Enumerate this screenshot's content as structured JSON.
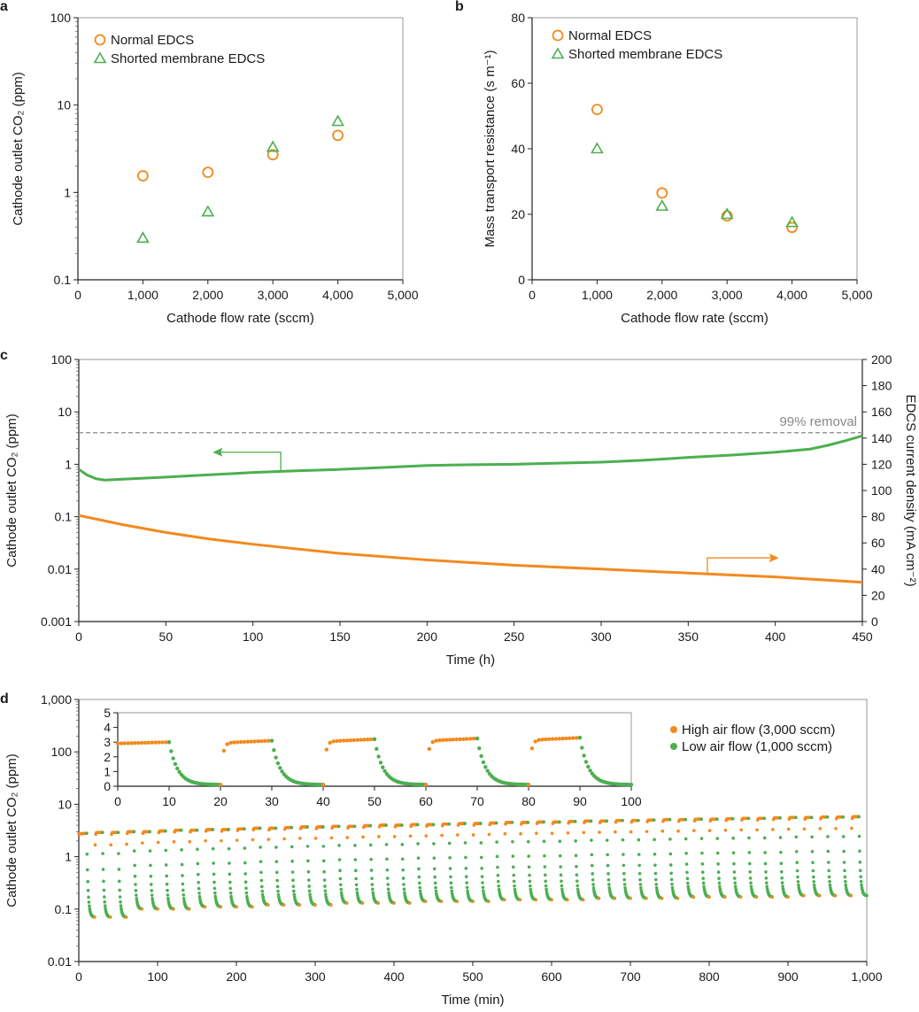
{
  "chart_data": [
    {
      "panel": "a",
      "type": "scatter",
      "xlabel": "Cathode flow rate (sccm)",
      "ylabel": "Cathode outlet CO₂ (ppm)",
      "xlim": [
        0,
        5000
      ],
      "ylim": [
        0.1,
        100
      ],
      "yscale": "log",
      "xticks": [
        "0",
        "1,000",
        "2,000",
        "3,000",
        "4,000",
        "5,000"
      ],
      "yticks": [
        "0.1",
        "1",
        "10",
        "100"
      ],
      "legend_position": "top-left",
      "series": [
        {
          "name": "Normal EDCS",
          "marker": "circle-open",
          "color": "#f28a1e",
          "x": [
            1000,
            2000,
            3000,
            4000
          ],
          "y": [
            1.55,
            1.7,
            2.7,
            4.5
          ]
        },
        {
          "name": "Shorted membrane EDCS",
          "marker": "triangle-open",
          "color": "#4caf50",
          "x": [
            1000,
            2000,
            3000,
            4000
          ],
          "y": [
            0.3,
            0.6,
            3.3,
            6.5
          ]
        }
      ]
    },
    {
      "panel": "b",
      "type": "scatter",
      "xlabel": "Cathode flow rate (sccm)",
      "ylabel": "Mass transport resistance (s m⁻¹)",
      "xlim": [
        0,
        5000
      ],
      "ylim": [
        0,
        80
      ],
      "yscale": "linear",
      "xticks": [
        "0",
        "1,000",
        "2,000",
        "3,000",
        "4,000",
        "5,000"
      ],
      "yticks": [
        "0",
        "20",
        "40",
        "60",
        "80"
      ],
      "legend_position": "top-left",
      "series": [
        {
          "name": "Normal EDCS",
          "marker": "circle-open",
          "color": "#f28a1e",
          "x": [
            1000,
            2000,
            3000,
            4000
          ],
          "y": [
            52,
            26.5,
            19.5,
            16
          ]
        },
        {
          "name": "Shorted membrane EDCS",
          "marker": "triangle-open",
          "color": "#4caf50",
          "x": [
            1000,
            2000,
            3000,
            4000
          ],
          "y": [
            40,
            22.5,
            20,
            17.5
          ]
        }
      ]
    },
    {
      "panel": "c",
      "type": "line",
      "xlabel": "Time (h)",
      "ylabel": "Cathode outlet CO₂ (ppm)",
      "ylabel_right": "EDCS current density (mA cm⁻²)",
      "xlim": [
        0,
        450
      ],
      "ylim": [
        0.001,
        100
      ],
      "yscale": "log",
      "ylim_right": [
        0,
        200
      ],
      "xticks": [
        "0",
        "50",
        "100",
        "150",
        "200",
        "250",
        "300",
        "350",
        "400",
        "450"
      ],
      "yticks": [
        "0.001",
        "0.01",
        "0.1",
        "1",
        "10",
        "100"
      ],
      "yticks_right": [
        "0",
        "20",
        "40",
        "60",
        "80",
        "100",
        "120",
        "140",
        "160",
        "180",
        "200"
      ],
      "reference_line": {
        "y": 4,
        "label": "99% removal",
        "color": "#888888",
        "style": "dashed"
      },
      "series": [
        {
          "axis": "left",
          "color": "#4caf50",
          "x": [
            0,
            5,
            10,
            15,
            25,
            50,
            75,
            100,
            125,
            150,
            175,
            200,
            225,
            250,
            275,
            300,
            325,
            350,
            375,
            400,
            420,
            430,
            440,
            450
          ],
          "y": [
            0.8,
            0.62,
            0.53,
            0.5,
            0.52,
            0.57,
            0.63,
            0.7,
            0.75,
            0.8,
            0.87,
            0.95,
            0.98,
            1.0,
            1.05,
            1.1,
            1.2,
            1.35,
            1.5,
            1.7,
            1.95,
            2.3,
            2.8,
            3.5
          ]
        },
        {
          "axis": "right",
          "color": "#f28a1e",
          "x": [
            0,
            25,
            50,
            75,
            100,
            150,
            200,
            250,
            300,
            350,
            400,
            450
          ],
          "y": [
            81,
            74,
            68,
            63,
            59,
            52,
            47,
            43,
            40,
            37,
            34,
            30
          ]
        }
      ]
    },
    {
      "panel": "d",
      "type": "scatter",
      "xlabel": "Time (min)",
      "ylabel": "Cathode outlet CO₂ (ppm)",
      "xlim": [
        0,
        1000
      ],
      "ylim": [
        0.01,
        1000
      ],
      "yscale": "log",
      "xticks": [
        "0",
        "100",
        "200",
        "300",
        "400",
        "500",
        "600",
        "700",
        "800",
        "900",
        "1,000"
      ],
      "yticks": [
        "0.01",
        "0.1",
        "1",
        "10",
        "100",
        "1,000"
      ],
      "legend_position": "top-right",
      "cycle_period_min": 20,
      "series": [
        {
          "name": "High air flow (3,000 sccm)",
          "color": "#f28a1e"
        },
        {
          "name": "Low air flow (1,000 sccm)",
          "color": "#4caf50"
        }
      ],
      "cycle_peak_ppm": [
        2.8,
        2.9,
        2.9,
        3.0,
        3.0,
        3.1,
        3.2,
        3.2,
        3.3,
        3.3,
        3.4,
        3.5,
        3.5,
        3.6,
        3.7,
        3.7,
        3.8,
        3.8,
        3.9,
        4.0,
        4.0,
        4.1,
        4.1,
        4.2,
        4.3,
        4.3,
        4.4,
        4.5,
        4.5,
        4.6,
        4.6,
        4.7,
        4.8,
        4.8,
        4.9,
        4.9,
        5.0,
        5.1,
        5.1,
        5.2,
        5.2,
        5.3,
        5.4,
        5.4,
        5.5,
        5.6,
        5.6,
        5.7,
        5.7,
        5.8
      ],
      "cycle_trough_ppm": [
        0.07,
        0.07,
        0.07,
        0.1,
        0.1,
        0.1,
        0.1,
        0.11,
        0.11,
        0.11,
        0.11,
        0.12,
        0.12,
        0.12,
        0.12,
        0.12,
        0.13,
        0.13,
        0.13,
        0.13,
        0.13,
        0.14,
        0.14,
        0.14,
        0.14,
        0.14,
        0.15,
        0.15,
        0.15,
        0.15,
        0.15,
        0.15,
        0.16,
        0.16,
        0.16,
        0.16,
        0.16,
        0.16,
        0.17,
        0.17,
        0.17,
        0.17,
        0.17,
        0.17,
        0.17,
        0.18,
        0.18,
        0.18,
        0.18,
        0.18
      ],
      "inset": {
        "xlim": [
          0,
          100
        ],
        "ylim": [
          0,
          5
        ],
        "yscale": "linear",
        "xticks": [
          "0",
          "10",
          "20",
          "30",
          "40",
          "50",
          "60",
          "70",
          "80",
          "90",
          "100"
        ],
        "yticks": [
          "0",
          "1",
          "2",
          "3",
          "4",
          "5"
        ],
        "cycle_peak_ppm": [
          3.0,
          3.1,
          3.2,
          3.25,
          3.3
        ],
        "cycle_trough_ppm": [
          0.1,
          0.1,
          0.1,
          0.1,
          0.1
        ]
      }
    }
  ]
}
